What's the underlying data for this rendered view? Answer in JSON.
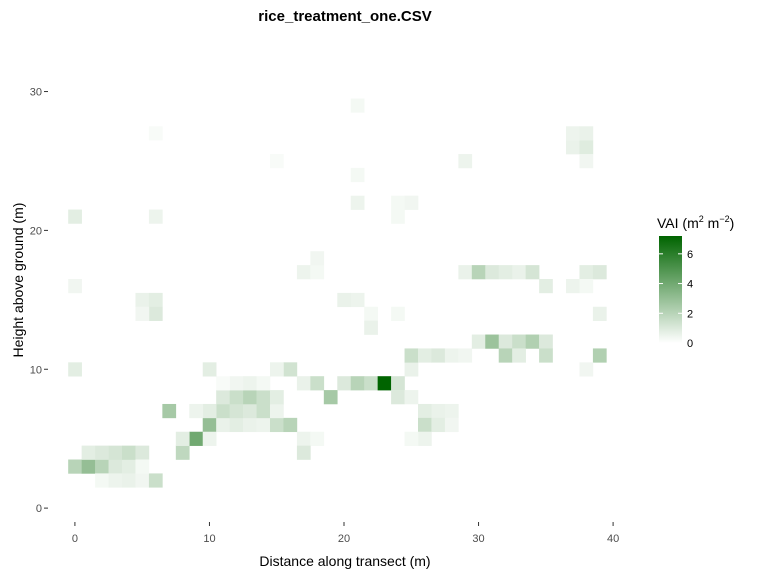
{
  "chart_data": {
    "type": "heatmap",
    "title": "rice_treatment_one.CSV",
    "xlabel": "Distance along transect (m)",
    "ylabel": "Height above ground (m)",
    "xlim": [
      -2,
      42
    ],
    "ylim": [
      -1,
      34
    ],
    "x_ticks": [
      0,
      10,
      20,
      30,
      40
    ],
    "y_ticks": [
      0,
      10,
      20,
      30
    ],
    "grid": false,
    "legend": {
      "title": "VAI (m² m⁻²)",
      "title_main": "VAI (m",
      "title_sup1": "2",
      "title_mid": " m",
      "title_sup2": "−2",
      "title_end": ")",
      "ticks": [
        0,
        2,
        4,
        6
      ],
      "min": 0,
      "max": 7.2,
      "placement": "right",
      "color_low": "#ffffff",
      "color_high": "#006400"
    },
    "cell_size": [
      1,
      1
    ],
    "cells": [
      [
        0,
        3,
        2.0
      ],
      [
        1,
        3,
        3.0
      ],
      [
        2,
        3,
        2.0
      ],
      [
        3,
        3,
        1.0
      ],
      [
        4,
        3,
        0.8
      ],
      [
        1,
        4,
        0.8
      ],
      [
        2,
        4,
        1.0
      ],
      [
        3,
        4,
        1.2
      ],
      [
        4,
        4,
        1.5
      ],
      [
        5,
        4,
        1.0
      ],
      [
        2,
        2,
        0.3
      ],
      [
        3,
        2,
        0.5
      ],
      [
        4,
        2,
        0.6
      ],
      [
        5,
        2,
        0.4
      ],
      [
        6,
        2,
        1.5
      ],
      [
        5,
        3,
        0.3
      ],
      [
        8,
        4,
        1.8
      ],
      [
        9,
        5,
        4.0
      ],
      [
        8,
        5,
        0.8
      ],
      [
        7,
        7,
        2.5
      ],
      [
        10,
        6,
        3.0
      ],
      [
        10,
        5,
        0.5
      ],
      [
        11,
        6,
        0.6
      ],
      [
        12,
        6,
        0.8
      ],
      [
        13,
        6,
        0.6
      ],
      [
        14,
        6,
        0.5
      ],
      [
        15,
        6,
        1.5
      ],
      [
        16,
        6,
        2.0
      ],
      [
        11,
        7,
        1.5
      ],
      [
        12,
        7,
        1.2
      ],
      [
        13,
        7,
        1.0
      ],
      [
        14,
        7,
        1.5
      ],
      [
        15,
        7,
        0.5
      ],
      [
        10,
        7,
        0.8
      ],
      [
        9,
        7,
        0.5
      ],
      [
        11,
        8,
        1.0
      ],
      [
        12,
        8,
        1.5
      ],
      [
        13,
        8,
        2.0
      ],
      [
        14,
        8,
        1.5
      ],
      [
        15,
        8,
        0.8
      ],
      [
        12,
        9,
        0.4
      ],
      [
        13,
        9,
        0.5
      ],
      [
        14,
        9,
        0.3
      ],
      [
        11,
        9,
        0.2
      ],
      [
        10,
        10,
        0.8
      ],
      [
        16,
        10,
        1.3
      ],
      [
        15,
        10,
        0.5
      ],
      [
        17,
        9,
        0.6
      ],
      [
        18,
        9,
        1.5
      ],
      [
        19,
        8,
        2.5
      ],
      [
        20,
        9,
        1.0
      ],
      [
        21,
        9,
        2.0
      ],
      [
        22,
        9,
        1.5
      ],
      [
        23,
        9,
        7.2
      ],
      [
        24,
        9,
        1.2
      ],
      [
        24,
        8,
        1.0
      ],
      [
        25,
        8,
        0.5
      ],
      [
        26,
        7,
        0.8
      ],
      [
        27,
        7,
        0.6
      ],
      [
        28,
        7,
        0.5
      ],
      [
        26,
        6,
        1.5
      ],
      [
        27,
        6,
        0.8
      ],
      [
        28,
        6,
        0.4
      ],
      [
        26,
        5,
        0.5
      ],
      [
        25,
        5,
        0.3
      ],
      [
        17,
        5,
        0.5
      ],
      [
        18,
        5,
        0.3
      ],
      [
        17,
        4,
        1.0
      ],
      [
        25,
        10,
        0.6
      ],
      [
        25,
        11,
        1.5
      ],
      [
        26,
        11,
        0.8
      ],
      [
        27,
        11,
        1.0
      ],
      [
        28,
        11,
        0.5
      ],
      [
        29,
        11,
        0.4
      ],
      [
        30,
        12,
        0.8
      ],
      [
        31,
        12,
        2.8
      ],
      [
        32,
        12,
        1.0
      ],
      [
        33,
        12,
        1.5
      ],
      [
        34,
        12,
        2.2
      ],
      [
        35,
        12,
        1.0
      ],
      [
        32,
        11,
        2.0
      ],
      [
        33,
        11,
        0.8
      ],
      [
        35,
        11,
        1.5
      ],
      [
        39,
        11,
        2.2
      ],
      [
        38,
        10,
        0.4
      ],
      [
        29,
        17,
        0.6
      ],
      [
        30,
        17,
        2.0
      ],
      [
        31,
        17,
        1.0
      ],
      [
        32,
        17,
        0.8
      ],
      [
        33,
        17,
        0.6
      ],
      [
        34,
        17,
        1.2
      ],
      [
        35,
        16,
        0.8
      ],
      [
        37,
        16,
        0.5
      ],
      [
        38,
        17,
        0.8
      ],
      [
        39,
        17,
        1.0
      ],
      [
        38,
        16,
        0.3
      ],
      [
        39,
        14,
        0.6
      ],
      [
        37,
        26,
        0.6
      ],
      [
        38,
        26,
        0.9
      ],
      [
        37,
        27,
        0.5
      ],
      [
        38,
        27,
        0.6
      ],
      [
        38,
        25,
        0.4
      ],
      [
        29,
        25,
        0.5
      ],
      [
        21,
        22,
        0.5
      ],
      [
        21,
        24,
        0.3
      ],
      [
        24,
        22,
        0.3
      ],
      [
        25,
        22,
        0.4
      ],
      [
        24,
        21,
        0.3
      ],
      [
        21,
        29,
        0.3
      ],
      [
        15,
        25,
        0.2
      ],
      [
        17,
        17,
        0.5
      ],
      [
        18,
        17,
        0.3
      ],
      [
        18,
        18,
        0.4
      ],
      [
        20,
        15,
        0.6
      ],
      [
        21,
        15,
        0.5
      ],
      [
        22,
        14,
        0.3
      ],
      [
        22,
        13,
        0.6
      ],
      [
        24,
        14,
        0.3
      ],
      [
        0,
        10,
        0.8
      ],
      [
        0,
        16,
        0.4
      ],
      [
        0,
        21,
        0.8
      ],
      [
        6,
        21,
        0.5
      ],
      [
        6,
        27,
        0.2
      ],
      [
        5,
        15,
        0.6
      ],
      [
        6,
        15,
        0.8
      ],
      [
        6,
        14,
        1.0
      ],
      [
        5,
        14,
        0.4
      ]
    ]
  }
}
